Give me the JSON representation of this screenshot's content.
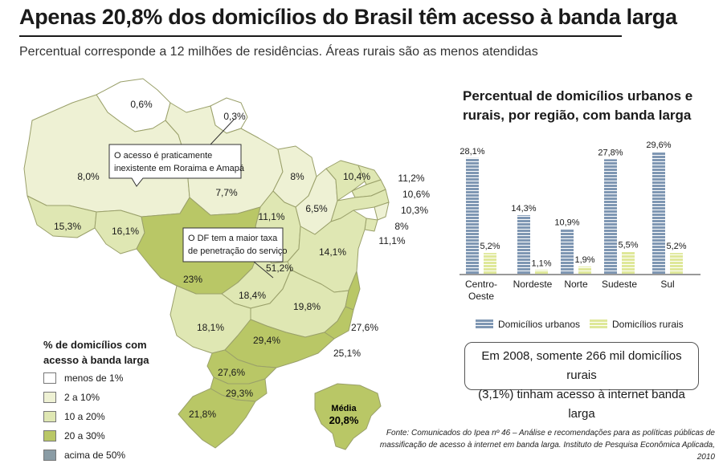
{
  "header": {
    "title": "Apenas 20,8% dos domicílios do Brasil têm acesso à banda larga",
    "subtitle": "Percentual corresponde a 12 milhões de residências. Áreas rurais são as menos atendidas"
  },
  "map": {
    "states": [
      {
        "id": "RR",
        "label": "0,6%",
        "value": 0.6,
        "category": "menos de 1%"
      },
      {
        "id": "AP",
        "label": "0,3%",
        "value": 0.3,
        "category": "menos de 1%"
      },
      {
        "id": "AM",
        "label": "8,0%",
        "value": 8.0,
        "category": "2 a 10%"
      },
      {
        "id": "PA",
        "label": "7,7%",
        "value": 7.7,
        "category": "2 a 10%"
      },
      {
        "id": "MA",
        "label": "8%",
        "value": 8,
        "category": "2 a 10%"
      },
      {
        "id": "PI",
        "label": "6,5%",
        "value": 6.5,
        "category": "2 a 10%"
      },
      {
        "id": "CE",
        "label": "10,4%",
        "value": 10.4,
        "category": "10 a 20%"
      },
      {
        "id": "RN",
        "label": "11,2%",
        "value": 11.2,
        "category": "10 a 20%"
      },
      {
        "id": "PB",
        "label": "10,6%",
        "value": 10.6,
        "category": "10 a 20%"
      },
      {
        "id": "PE",
        "label": "10,3%",
        "value": 10.3,
        "category": "10 a 20%"
      },
      {
        "id": "AL",
        "label": "8%",
        "value": 8,
        "category": "2 a 10%"
      },
      {
        "id": "SE",
        "label": "11,1%",
        "value": 11.1,
        "category": "10 a 20%"
      },
      {
        "id": "TO",
        "label": "11,1%",
        "value": 11.1,
        "category": "10 a 20%"
      },
      {
        "id": "AC",
        "label": "15,3%",
        "value": 15.3,
        "category": "10 a 20%"
      },
      {
        "id": "RO",
        "label": "16,1%",
        "value": 16.1,
        "category": "10 a 20%"
      },
      {
        "id": "MT",
        "label": "23%",
        "value": 23,
        "category": "20 a 30%"
      },
      {
        "id": "BA",
        "label": "14,1%",
        "value": 14.1,
        "category": "10 a 20%"
      },
      {
        "id": "DF",
        "label": "51,2%",
        "value": 51.2,
        "category": "acima de 50%"
      },
      {
        "id": "GO",
        "label": "18,4%",
        "value": 18.4,
        "category": "10 a 20%"
      },
      {
        "id": "MG",
        "label": "19,8%",
        "value": 19.8,
        "category": "10 a 20%"
      },
      {
        "id": "ES",
        "label": "27,6%",
        "value": 27.6,
        "category": "20 a 30%"
      },
      {
        "id": "RJ",
        "label": "25,1%",
        "value": 25.1,
        "category": "20 a 30%"
      },
      {
        "id": "MS",
        "label": "18,1%",
        "value": 18.1,
        "category": "10 a 20%"
      },
      {
        "id": "SP",
        "label": "29,4%",
        "value": 29.4,
        "category": "20 a 30%"
      },
      {
        "id": "PR",
        "label": "27,6%",
        "value": 27.6,
        "category": "20 a 30%"
      },
      {
        "id": "SC",
        "label": "29,3%",
        "value": 29.3,
        "category": "20 a 30%"
      },
      {
        "id": "RS",
        "label": "21,8%",
        "value": 21.8,
        "category": "20 a 30%"
      }
    ],
    "callouts": {
      "rr_ap": [
        "O acesso é praticamente",
        "inexistente em Roraima e Amapá"
      ],
      "df": [
        "O DF tem a maior taxa",
        "de penetração do serviço"
      ]
    },
    "average": {
      "label": "Média",
      "value": "20,8%"
    }
  },
  "legend": {
    "title": [
      "% de domicílios com",
      "acesso à banda larga"
    ],
    "items": [
      {
        "label": "menos de 1%",
        "color": "#ffffff"
      },
      {
        "label": "2 a 10%",
        "color": "#eef1d4"
      },
      {
        "label": "10 a 20%",
        "color": "#dfe7b3"
      },
      {
        "label": "20 a 30%",
        "color": "#b9c766"
      },
      {
        "label": "acima de 50%",
        "color": "#8a9ca5"
      }
    ]
  },
  "colors": {
    "urban": "#7f97b3",
    "rural": "#dfe89a",
    "border": "#9aa06a"
  },
  "chart_data": {
    "type": "bar",
    "title": "Percentual de domicílios urbanos e rurais, por região, com banda larga",
    "categories": [
      "Centro-Oeste",
      "Nordeste",
      "Norte",
      "Sudeste",
      "Sul"
    ],
    "category_lines": [
      [
        "Centro-",
        "Oeste"
      ],
      [
        "Nordeste"
      ],
      [
        "Norte"
      ],
      [
        "Sudeste"
      ],
      [
        "Sul"
      ]
    ],
    "series": [
      {
        "name": "Domicílios urbanos",
        "values": [
          28.1,
          14.3,
          10.9,
          27.8,
          29.6
        ],
        "labels": [
          "28,1%",
          "14,3%",
          "10,9%",
          "27,8%",
          "29,6%"
        ]
      },
      {
        "name": "Domicílios rurais",
        "values": [
          5.2,
          1.1,
          1.9,
          5.5,
          5.2
        ],
        "labels": [
          "5,2%",
          "1,1%",
          "1,9%",
          "5,5%",
          "5,2%"
        ]
      }
    ],
    "ylim": [
      0,
      30
    ]
  },
  "note": {
    "line1": "Em 2008, somente 266 mil domicílios rurais",
    "line2": "(3,1%) tinham acesso à internet banda larga"
  },
  "source": {
    "line1": "Fonte: Comunicados do Ipea nº 46 – Análise e recomendações para as políticas públicas de",
    "line2": "massificação de acesso à internet em banda larga. Instituto de Pesquisa Econômica Aplicada, 2010"
  }
}
